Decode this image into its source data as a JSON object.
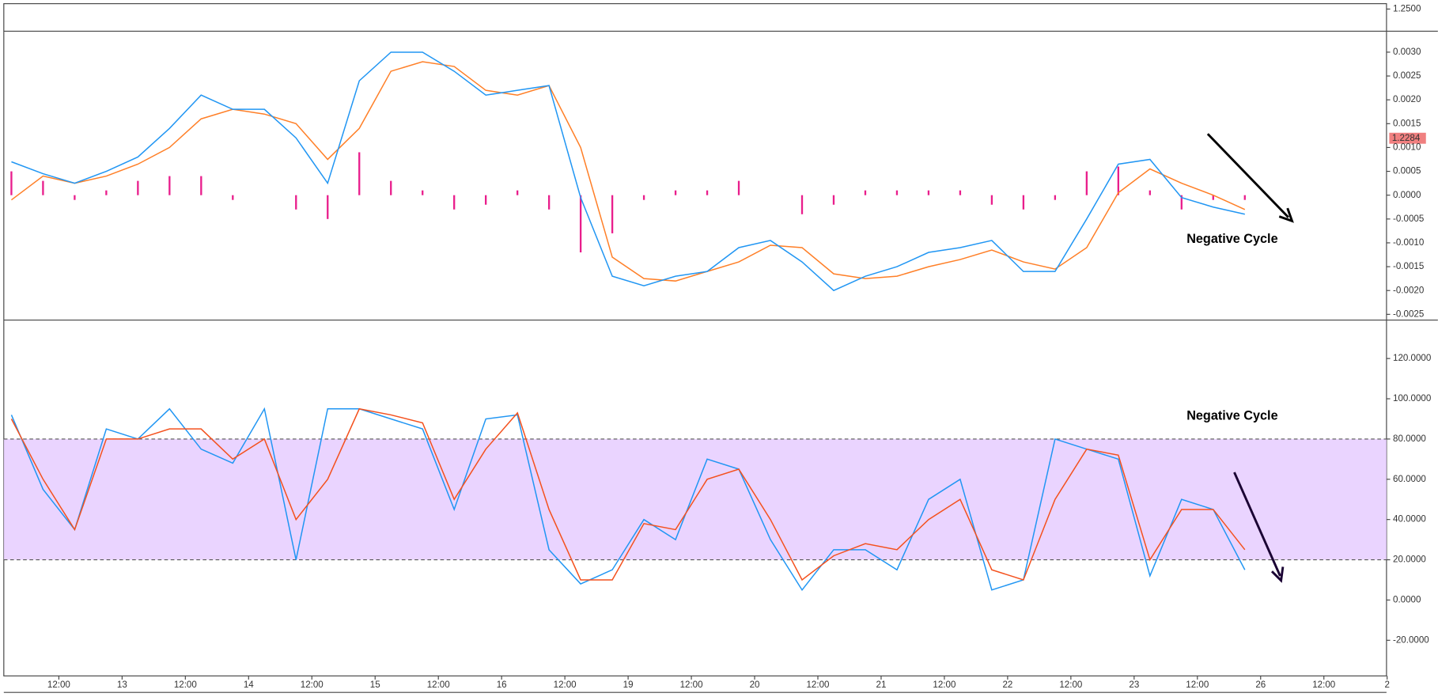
{
  "chart_data": [
    {
      "type": "line",
      "ylim": [
        1.2463,
        1.2509
      ],
      "yticks": [
        {
          "value": 1.25,
          "label": "1.2500"
        }
      ],
      "last_price": {
        "value": 1.2284,
        "label": "1.2284"
      }
    },
    {
      "type": "line",
      "xlim": [
        -0.87,
        20.99
      ],
      "ylim": [
        -0.00262,
        0.00344
      ],
      "yticks": [
        {
          "value": 0.003,
          "label": "0.0030"
        },
        {
          "value": 0.0025,
          "label": "0.0025"
        },
        {
          "value": 0.002,
          "label": "0.0020"
        },
        {
          "value": 0.0015,
          "label": "0.0015"
        },
        {
          "value": 0.001,
          "label": "0.0010"
        },
        {
          "value": 0.0005,
          "label": "0.0005"
        },
        {
          "value": 0,
          "label": "0.0000"
        },
        {
          "value": -0.0005,
          "label": "-0.0005"
        },
        {
          "value": -0.001,
          "label": "-0.0010"
        },
        {
          "value": -0.0015,
          "label": "-0.0015"
        },
        {
          "value": -0.002,
          "label": "-0.0020"
        },
        {
          "value": -0.0025,
          "label": "-0.0025"
        }
      ],
      "x": [
        -0.75,
        -0.25,
        0.25,
        0.75,
        1.25,
        1.75,
        2.25,
        2.75,
        3.25,
        3.75,
        4.25,
        4.75,
        5.25,
        5.75,
        6.25,
        6.75,
        7.25,
        7.75,
        8.25,
        8.75,
        9.25,
        9.75,
        10.25,
        10.75,
        11.25,
        11.75,
        12.25,
        12.75,
        13.25,
        13.75,
        14.25,
        14.75,
        15.25,
        15.75,
        16.25,
        16.75,
        17.25,
        17.75,
        18.25,
        18.75
      ],
      "series": [
        {
          "type": "bar",
          "color": "#e91e8c",
          "values": [
            0.0005,
            0.0003,
            -0.0001,
            0.0001,
            0.0003,
            0.0004,
            0.0004,
            -0.0001,
            0,
            -0.0003,
            -0.0005,
            0.0009,
            0.0003,
            0.0001,
            -0.0003,
            -0.0002,
            0.0001,
            -0.0003,
            -0.0012,
            -0.0008,
            -0.0001,
            0.0001,
            0.0001,
            0.0003,
            0,
            -0.0004,
            -0.0002,
            0.0001,
            0.0001,
            0.0001,
            0.0001,
            -0.0002,
            -0.0003,
            -0.0001,
            0.0005,
            0.0006,
            0.0001,
            -0.0003,
            -0.0001,
            -0.0001
          ]
        },
        {
          "type": "line",
          "color": "#ff7f27",
          "values": [
            -0.0001,
            0.0004,
            0.00025,
            0.0004,
            0.00065,
            0.001,
            0.0016,
            0.0018,
            0.0017,
            0.0015,
            0.00075,
            0.0014,
            0.0026,
            0.0028,
            0.0027,
            0.0022,
            0.0021,
            0.0023,
            0.001,
            -0.0013,
            -0.00175,
            -0.0018,
            -0.0016,
            -0.0014,
            -0.00105,
            -0.0011,
            -0.00165,
            -0.00175,
            -0.0017,
            -0.0015,
            -0.00135,
            -0.00115,
            -0.0014,
            -0.00155,
            -0.0011,
            5e-05,
            0.00055,
            0.00025,
            0,
            -0.0003
          ]
        },
        {
          "type": "line",
          "color": "#2196f3",
          "values": [
            0.0007,
            0.00045,
            0.00025,
            0.0005,
            0.0008,
            0.0014,
            0.0021,
            0.0018,
            0.0018,
            0.0012,
            0.00025,
            0.0024,
            0.003,
            0.003,
            0.0026,
            0.0021,
            0.0022,
            0.0023,
            -5e-05,
            -0.0017,
            -0.0019,
            -0.0017,
            -0.0016,
            -0.0011,
            -0.00095,
            -0.0014,
            -0.002,
            -0.0017,
            -0.0015,
            -0.0012,
            -0.0011,
            -0.00095,
            -0.0016,
            -0.0016,
            -0.0005,
            0.00065,
            0.00075,
            -5e-05,
            -0.00025,
            -0.0004
          ]
        }
      ],
      "annotations": [
        "Negative Cycle"
      ]
    },
    {
      "type": "line",
      "xlim": [
        -0.87,
        20.99
      ],
      "ylim": [
        -37.7,
        139.1
      ],
      "yticks": [
        {
          "value": 120,
          "label": "120.0000"
        },
        {
          "value": 100,
          "label": "100.0000"
        },
        {
          "value": 80,
          "label": "80.0000"
        },
        {
          "value": 60,
          "label": "60.0000"
        },
        {
          "value": 40,
          "label": "40.0000"
        },
        {
          "value": 20,
          "label": "20.0000"
        },
        {
          "value": 0,
          "label": "0.0000"
        },
        {
          "value": -20,
          "label": "-20.0000"
        }
      ],
      "band": [
        20,
        80
      ],
      "xticks": [
        {
          "value": 0,
          "label": "12:00"
        },
        {
          "value": 1,
          "label": "13"
        },
        {
          "value": 2,
          "label": "12:00"
        },
        {
          "value": 3,
          "label": "14"
        },
        {
          "value": 4,
          "label": "12:00"
        },
        {
          "value": 5,
          "label": "15"
        },
        {
          "value": 6,
          "label": "12:00"
        },
        {
          "value": 7,
          "label": "16"
        },
        {
          "value": 8,
          "label": "12:00"
        },
        {
          "value": 9,
          "label": "19"
        },
        {
          "value": 10,
          "label": "12:00"
        },
        {
          "value": 11,
          "label": "20"
        },
        {
          "value": 12,
          "label": "12:00"
        },
        {
          "value": 13,
          "label": "21"
        },
        {
          "value": 14,
          "label": "12:00"
        },
        {
          "value": 15,
          "label": "22"
        },
        {
          "value": 16,
          "label": "12:00"
        },
        {
          "value": 17,
          "label": "23"
        },
        {
          "value": 18,
          "label": "12:00"
        },
        {
          "value": 19,
          "label": "26"
        },
        {
          "value": 20,
          "label": "12:00"
        },
        {
          "value": 21,
          "label": "2"
        }
      ],
      "x": [
        -0.75,
        -0.25,
        0.25,
        0.75,
        1.25,
        1.75,
        2.25,
        2.75,
        3.25,
        3.75,
        4.25,
        4.75,
        5.25,
        5.75,
        6.25,
        6.75,
        7.25,
        7.75,
        8.25,
        8.75,
        9.25,
        9.75,
        10.25,
        10.75,
        11.25,
        11.75,
        12.25,
        12.75,
        13.25,
        13.75,
        14.25,
        14.75,
        15.25,
        15.75,
        16.25,
        16.75,
        17.25,
        17.75,
        18.25,
        18.75
      ],
      "series": [
        {
          "type": "line",
          "color": "#2196f3",
          "values": [
            92,
            55,
            35,
            85,
            80,
            95,
            75,
            68,
            95,
            20,
            95,
            95,
            90,
            85,
            45,
            90,
            92,
            25,
            8,
            15,
            40,
            30,
            70,
            65,
            30,
            5,
            25,
            25,
            15,
            50,
            60,
            5,
            10,
            80,
            75,
            70,
            12,
            50,
            45,
            15
          ]
        },
        {
          "type": "line",
          "color": "#f4511e",
          "values": [
            90,
            60,
            35,
            80,
            80,
            85,
            85,
            70,
            80,
            40,
            60,
            95,
            92,
            88,
            50,
            75,
            93,
            45,
            10,
            10,
            38,
            35,
            60,
            65,
            40,
            10,
            22,
            28,
            25,
            40,
            50,
            15,
            10,
            50,
            75,
            72,
            20,
            45,
            45,
            25
          ]
        }
      ],
      "annotations": [
        "Negative Cycle"
      ]
    }
  ]
}
